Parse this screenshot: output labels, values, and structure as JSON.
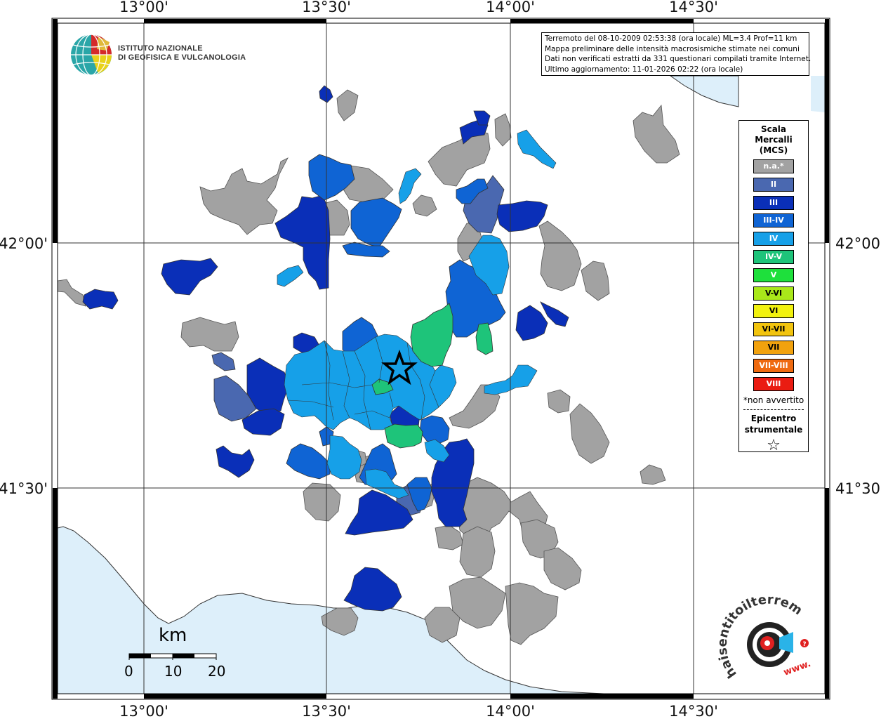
{
  "map": {
    "top_lon_labels": [
      "13°00'",
      "13°30'",
      "14°00'",
      "14°30'"
    ],
    "bottom_lon_labels": [
      "13°00'",
      "13°30'",
      "14°00'",
      "14°30'"
    ],
    "left_lat_labels": [
      "42°00'",
      "41°30'"
    ],
    "right_lat_labels": [
      "42°00'",
      "41°30'"
    ],
    "colors": {
      "na": "#a2a2a2",
      "II": "#4a68b0",
      "III": "#0a2fb8",
      "III-IV": "#0f64d4",
      "IV": "#16a0e8",
      "IV-V": "#1ec47a",
      "V": "#1ee03c",
      "V-VI": "#a9e81a",
      "VI": "#f2f20e",
      "VI-VII": "#f2c40e",
      "VII": "#f2a20e",
      "VII-VIII": "#ef6a10",
      "VIII": "#ea1c12",
      "sea": "#ddeffa"
    }
  },
  "info": {
    "line1": "Terremoto del 08-10-2009 02:53:38 (ora locale) ML=3.4 Prof=11 km",
    "line2": "Mappa preliminare delle intensità macrosismiche stimate nei comuni",
    "line3": "Dati non verificati estratti da 331 questionari compilati tramite Internet.",
    "line4": "Ultimo aggiornamento: 11-01-2026 02:22 (ora locale)"
  },
  "logo": {
    "ingv_line1": "ISTITUTO NAZIONALE",
    "ingv_line2": "DI GEOFISICA E VULCANOLOGIA",
    "hsit_text": "haisentitoilterremoto.it",
    "hsit_www": "www."
  },
  "legend": {
    "title_line1": "Scala",
    "title_line2": "Mercalli",
    "title_line3": "(MCS)",
    "items": [
      {
        "label": "n.a.*",
        "key": "na"
      },
      {
        "label": "II",
        "key": "II"
      },
      {
        "label": "III",
        "key": "III"
      },
      {
        "label": "III-IV",
        "key": "III-IV"
      },
      {
        "label": "IV",
        "key": "IV"
      },
      {
        "label": "IV-V",
        "key": "IV-V"
      },
      {
        "label": "V",
        "key": "V"
      },
      {
        "label": "V-VI",
        "key": "V-VI"
      },
      {
        "label": "VI",
        "key": "VI"
      },
      {
        "label": "VI-VII",
        "key": "VI-VII"
      },
      {
        "label": "VII",
        "key": "VII"
      },
      {
        "label": "VII-VIII",
        "key": "VII-VIII"
      },
      {
        "label": "VIII",
        "key": "VIII"
      }
    ],
    "note": "*non avvertito",
    "epicenter_line1": "Epicentro",
    "epicenter_line2": "strumentale",
    "epicenter_symbol": "☆"
  },
  "scalebar": {
    "unit": "km",
    "ticks": [
      "0",
      "10",
      "20"
    ]
  }
}
